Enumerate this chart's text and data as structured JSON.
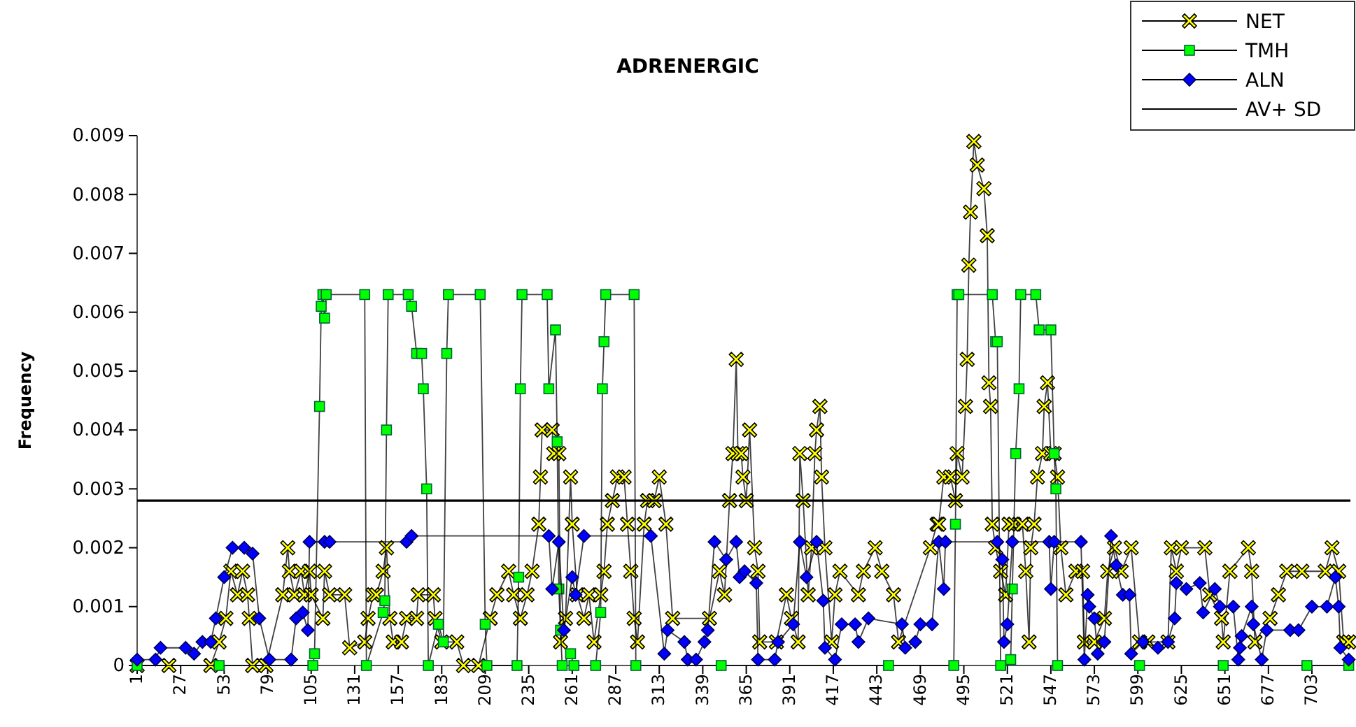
{
  "chart_data": {
    "type": "line",
    "title": "ADRENERGIC",
    "ylabel": "Frequency",
    "xlim": [
      1,
      726
    ],
    "xticks": [
      1,
      27,
      53,
      79,
      105,
      131,
      157,
      183,
      209,
      235,
      261,
      287,
      313,
      339,
      365,
      391,
      417,
      443,
      469,
      495,
      521,
      547,
      573,
      599,
      625,
      651,
      677,
      703
    ],
    "ylim": [
      0,
      0.009
    ],
    "yticks": [
      0,
      0.001,
      0.002,
      0.003,
      0.004,
      0.005,
      0.006,
      0.007,
      0.008,
      0.009
    ],
    "grid": false,
    "legend": "top right",
    "series": [
      {
        "name": "NET",
        "color": "#ffff00",
        "marker": "cross",
        "x": [
          1,
          20,
          45,
          50,
          54,
          57,
          61,
          64,
          67,
          68,
          70,
          78,
          88,
          91,
          92,
          95,
          99,
          101,
          104,
          105,
          112,
          113,
          116,
          125,
          128,
          137,
          139,
          142,
          144,
          148,
          150,
          152,
          154,
          159,
          162,
          168,
          169,
          178,
          179,
          183,
          192,
          196,
          205,
          212,
          216,
          223,
          226,
          230,
          234,
          237,
          241,
          242,
          243,
          249,
          250,
          253,
          254,
          257,
          260,
          261,
          264,
          268,
          271,
          274,
          278,
          280,
          282,
          285,
          288,
          292,
          294,
          296,
          298,
          300,
          304,
          306,
          310,
          313,
          317,
          321,
          343,
          349,
          352,
          355,
          357,
          359,
          360,
          362,
          363,
          365,
          367,
          370,
          372,
          373,
          383,
          389,
          392,
          396,
          397,
          399,
          402,
          404,
          406,
          407,
          409,
          410,
          412,
          416,
          418,
          421,
          432,
          435,
          442,
          446,
          453,
          456,
          475,
          479,
          480,
          483,
          487,
          490,
          491,
          494,
          496,
          497,
          498,
          499,
          501,
          503,
          507,
          509,
          510,
          511,
          512,
          514,
          517,
          520,
          522,
          525,
          530,
          532,
          534,
          535,
          537,
          539,
          542,
          543,
          545,
          547,
          549,
          551,
          553,
          556,
          562,
          566,
          567,
          573,
          579,
          581,
          585,
          589,
          595,
          600,
          605,
          617,
          619,
          622,
          625,
          639,
          642,
          649,
          650,
          654,
          665,
          667,
          669,
          678,
          683,
          688,
          697,
          711,
          715,
          719,
          722,
          725
        ],
        "values": [
          0,
          0,
          0,
          0.0004,
          0.0008,
          0.0016,
          0.0012,
          0.0016,
          0.0012,
          0.0008,
          0,
          0,
          0.0012,
          0.002,
          0.0016,
          0.0012,
          0.0016,
          0.0012,
          0.0016,
          0.0012,
          0.0008,
          0.0016,
          0.0012,
          0.0012,
          0.0003,
          0.0004,
          0.0008,
          0.0012,
          0.0012,
          0.0016,
          0.002,
          0.0008,
          0.0004,
          0.0004,
          0.0008,
          0.0008,
          0.0012,
          0.0012,
          0.0008,
          0.0004,
          0.0004,
          0,
          0,
          0.0008,
          0.0012,
          0.0016,
          0.0012,
          0.0008,
          0.0012,
          0.0016,
          0.0024,
          0.0032,
          0.004,
          0.004,
          0.0036,
          0.0036,
          0.0004,
          0.0008,
          0.0032,
          0.0024,
          0.0012,
          0.0008,
          0.0012,
          0.0004,
          0.0012,
          0.0016,
          0.0024,
          0.0028,
          0.0032,
          0.0032,
          0.0024,
          0.0016,
          0.0008,
          0.0004,
          0.0024,
          0.0028,
          0.0028,
          0.0032,
          0.0024,
          0.0008,
          0.0008,
          0.0016,
          0.0012,
          0.0028,
          0.0036,
          0.0052,
          0.0036,
          0.0036,
          0.0032,
          0.0028,
          0.004,
          0.002,
          0.0016,
          0.0004,
          0.0004,
          0.0012,
          0.0008,
          0.0004,
          0.0036,
          0.0028,
          0.0012,
          0.002,
          0.0036,
          0.004,
          0.0044,
          0.0032,
          0.002,
          0.0004,
          0.0012,
          0.0016,
          0.0012,
          0.0016,
          0.002,
          0.0016,
          0.0012,
          0.0004,
          0.002,
          0.0024,
          0.0024,
          0.0032,
          0.0032,
          0.0028,
          0.0036,
          0.0032,
          0.0044,
          0.0052,
          0.0068,
          0.0077,
          0.0089,
          0.0085,
          0.0081,
          0.0073,
          0.0048,
          0.0044,
          0.0024,
          0.002,
          0.0016,
          0.0012,
          0.0024,
          0.0024,
          0.0024,
          0.0016,
          0.0004,
          0.002,
          0.0024,
          0.0032,
          0.0036,
          0.0044,
          0.0048,
          0.0036,
          0.0036,
          0.0032,
          0.002,
          0.0012,
          0.0016,
          0.0016,
          0.0004,
          0.0004,
          0.0008,
          0.0016,
          0.002,
          0.0016,
          0.002,
          0.0004,
          0.0004,
          0.0004,
          0.002,
          0.0016,
          0.002,
          0.002,
          0.0012,
          0.0008,
          0.0004,
          0.0016,
          0.002,
          0.0016,
          0.0004,
          0.0008,
          0.0012,
          0.0016,
          0.0016,
          0.0016,
          0.002,
          0.0016,
          0.0004,
          0.0004
        ]
      },
      {
        "name": "TMH",
        "color": "#00ff00",
        "marker": "square",
        "x": [
          1,
          50,
          106,
          107,
          110,
          111,
          112,
          113,
          114,
          137,
          138,
          148,
          149,
          150,
          151,
          163,
          165,
          168,
          171,
          172,
          174,
          175,
          181,
          184,
          186,
          187,
          206,
          209,
          210,
          228,
          229,
          230,
          231,
          246,
          247,
          251,
          252,
          253,
          254,
          255,
          260,
          262,
          275,
          278,
          279,
          280,
          281,
          298,
          299,
          350,
          450,
          489,
          490,
          491,
          492,
          512,
          514,
          515,
          517,
          523,
          524,
          526,
          528,
          529,
          538,
          540,
          547,
          549,
          550,
          551,
          600,
          650,
          700,
          725
        ],
        "values": [
          0,
          0,
          0,
          0.0002,
          0.0044,
          0.0061,
          0.0063,
          0.0059,
          0.0063,
          0.0063,
          0,
          0.0009,
          0.0011,
          0.004,
          0.0063,
          0.0063,
          0.0061,
          0.0053,
          0.0053,
          0.0047,
          0.003,
          0,
          0.0007,
          0.0004,
          0.0053,
          0.0063,
          0.0063,
          0.0007,
          0,
          0,
          0.0015,
          0.0047,
          0.0063,
          0.0063,
          0.0047,
          0.0057,
          0.0038,
          0.0013,
          0.0006,
          0,
          0.0002,
          0,
          0,
          0.0009,
          0.0047,
          0.0055,
          0.0063,
          0.0063,
          0,
          0,
          0,
          0,
          0.0024,
          0.0063,
          0.0063,
          0.0063,
          0.0055,
          0.0055,
          0,
          0.0001,
          0.0013,
          0.0036,
          0.0047,
          0.0063,
          0.0063,
          0.0057,
          0.0057,
          0.0036,
          0.003,
          0,
          0,
          0,
          0,
          0
        ]
      },
      {
        "name": "ALN",
        "color": "#0000ff",
        "marker": "diamond",
        "x": [
          1,
          12,
          15,
          30,
          35,
          40,
          45,
          48,
          53,
          58,
          65,
          70,
          74,
          80,
          93,
          96,
          100,
          103,
          104,
          113,
          116,
          162,
          165,
          247,
          249,
          253,
          256,
          261,
          263,
          268,
          308,
          316,
          318,
          328,
          330,
          335,
          340,
          342,
          346,
          353,
          359,
          361,
          364,
          371,
          372,
          382,
          384,
          393,
          397,
          401,
          407,
          411,
          412,
          418,
          422,
          430,
          432,
          438,
          458,
          460,
          466,
          469,
          476,
          480,
          483,
          484,
          515,
          518,
          519,
          521,
          524,
          546,
          547,
          549,
          565,
          567,
          569,
          570,
          573,
          575,
          579,
          583,
          586,
          590,
          594,
          595,
          602,
          611,
          617,
          621,
          622,
          628,
          636,
          638,
          645,
          648,
          656,
          659,
          660,
          661,
          667,
          668,
          673,
          676,
          690,
          695,
          703,
          712,
          717,
          719,
          720,
          725
        ],
        "values": [
          0.0001,
          0.0001,
          0.0003,
          0.0003,
          0.0002,
          0.0004,
          0.0004,
          0.0008,
          0.0015,
          0.002,
          0.002,
          0.0019,
          0.0008,
          0.0001,
          0.0001,
          0.0008,
          0.0009,
          0.0006,
          0.0021,
          0.0021,
          0.0021,
          0.0021,
          0.0022,
          0.0022,
          0.0013,
          0.0021,
          0.0006,
          0.0015,
          0.0012,
          0.0022,
          0.0022,
          0.0002,
          0.0006,
          0.0004,
          0.0001,
          0.0001,
          0.0004,
          0.0006,
          0.0021,
          0.0018,
          0.0021,
          0.0015,
          0.0016,
          0.0014,
          0.0001,
          0.0001,
          0.0004,
          0.0007,
          0.0021,
          0.0015,
          0.0021,
          0.0011,
          0.0003,
          0.0001,
          0.0007,
          0.0007,
          0.0004,
          0.0008,
          0.0007,
          0.0003,
          0.0004,
          0.0007,
          0.0007,
          0.0021,
          0.0013,
          0.0021,
          0.0021,
          0.0018,
          0.0004,
          0.0007,
          0.0021,
          0.0021,
          0.0013,
          0.0021,
          0.0021,
          0.0001,
          0.0012,
          0.001,
          0.0008,
          0.0002,
          0.0004,
          0.0022,
          0.0017,
          0.0012,
          0.0012,
          0.0002,
          0.0004,
          0.0003,
          0.0004,
          0.0008,
          0.0014,
          0.0013,
          0.0014,
          0.0009,
          0.0013,
          0.001,
          0.001,
          0.0001,
          0.0003,
          0.0005,
          0.001,
          0.0007,
          0.0001,
          0.0006,
          0.0006,
          0.0006,
          0.001,
          0.001,
          0.0015,
          0.001,
          0.0003,
          0.0001
        ]
      },
      {
        "name": "AV+ SD",
        "color": "#000000",
        "marker": "none",
        "x": [
          1,
          726
        ],
        "values": [
          0.0028,
          0.0028
        ]
      }
    ]
  }
}
